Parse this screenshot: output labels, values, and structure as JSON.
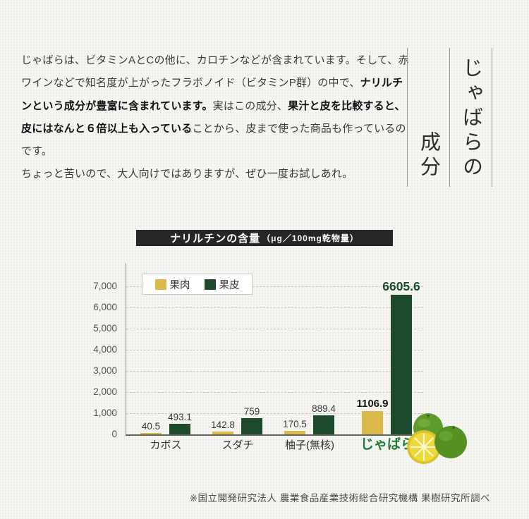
{
  "intro": {
    "paragraphs": [
      {
        "segments": [
          {
            "t": "じゃばらは、ビタミンAとCの他に、カロチンなどが含まれています。そして、赤ワインなどで知名度が上がったフラボノイド（ビタミンP群）の中で、",
            "b": false
          },
          {
            "t": "ナリルチンという成分が豊富に含まれています。",
            "b": true
          },
          {
            "t": "実はこの成分、",
            "b": false
          },
          {
            "t": "果汁と皮を比較すると、皮にはなんと６倍以上も入っている",
            "b": true
          },
          {
            "t": "ことから、皮まで使った商品も作っているのです。",
            "b": false
          }
        ]
      },
      {
        "segments": [
          {
            "t": "ちょっと苦いので、大人向けではありますが、ぜひ一度お試しあれ。",
            "b": false
          }
        ]
      }
    ]
  },
  "vertical_title": {
    "first_column": "じゃばらの",
    "second_column": "成分"
  },
  "chart_header": {
    "title": "ナリルチンの含量",
    "unit": "（μg／100mg乾物量）",
    "bg": "#262626",
    "text_color": "#ffffff"
  },
  "chart_data": {
    "type": "bar",
    "title": "ナリルチンの含量（μg／100mg乾物量）",
    "categories": [
      "カボス",
      "スダチ",
      "柚子(無核)",
      "じゃばら"
    ],
    "series": [
      {
        "name": "果肉",
        "color": "#dcb94b",
        "values": [
          40.5,
          142.8,
          170.5,
          1106.9
        ]
      },
      {
        "name": "果皮",
        "color": "#1d4a2c",
        "values": [
          493.1,
          759,
          889.4,
          6605.6
        ]
      }
    ],
    "xlabel": "",
    "ylabel": "",
    "ylim": [
      0,
      7000
    ],
    "yticks": [
      0,
      1000,
      2000,
      3000,
      4000,
      5000,
      6000,
      7000
    ],
    "ytick_labels": [
      "0",
      "1,000",
      "2,000",
      "3,000",
      "4,000",
      "5,000",
      "6,000",
      "7,000"
    ],
    "grid": "horizontal-dashed",
    "legend_position": "top-left",
    "emphasis_category": "じゃばら",
    "colors": {
      "value_label_default": "#3b3b3b",
      "value_label_emphasis_flesh": "#151515",
      "value_label_emphasis_peel": "#1d4a2c",
      "category_label_default": "#333333",
      "category_label_emphasis": "#1f7c35"
    }
  },
  "attribution": "※国立開発研究法人 農業食品産業技術総合研究機構 果樹研究所調べ"
}
